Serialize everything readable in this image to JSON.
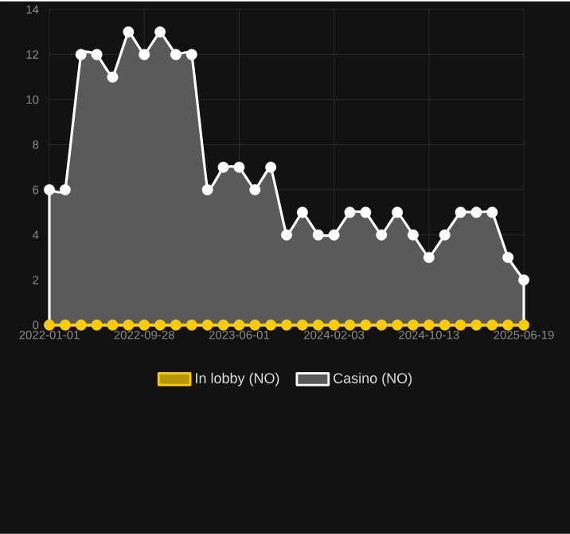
{
  "chart_data": {
    "type": "line",
    "categories": [
      "2022-01-01",
      null,
      null,
      null,
      null,
      null,
      "2022-09-28",
      null,
      null,
      null,
      null,
      null,
      "2023-06-01",
      null,
      null,
      null,
      null,
      null,
      "2024-02-03",
      null,
      null,
      null,
      null,
      null,
      "2024-10-13",
      null,
      null,
      null,
      null,
      null,
      "2025-06-19"
    ],
    "series": [
      {
        "name": "In lobby (NO)",
        "color": "#ffcc00",
        "values": [
          0,
          0,
          0,
          0,
          0,
          0,
          0,
          0,
          0,
          0,
          0,
          0,
          0,
          0,
          0,
          0,
          0,
          0,
          0,
          0,
          0,
          0,
          0,
          0,
          0,
          0,
          0,
          0,
          0,
          0,
          0
        ]
      },
      {
        "name": "Casino (NO)",
        "type": "area",
        "color": "#ffffff",
        "values": [
          6,
          6,
          12,
          12,
          11,
          13,
          12,
          13,
          12,
          12,
          6,
          7,
          7,
          6,
          7,
          4,
          5,
          4,
          4,
          5,
          5,
          4,
          5,
          4,
          3,
          4,
          5,
          5,
          5,
          3,
          2
        ]
      }
    ],
    "ylim": [
      0,
      14
    ],
    "yticks": [
      0,
      2,
      4,
      6,
      8,
      10,
      12,
      14
    ],
    "grid": true,
    "legend": "bottom",
    "marker": "circle"
  }
}
